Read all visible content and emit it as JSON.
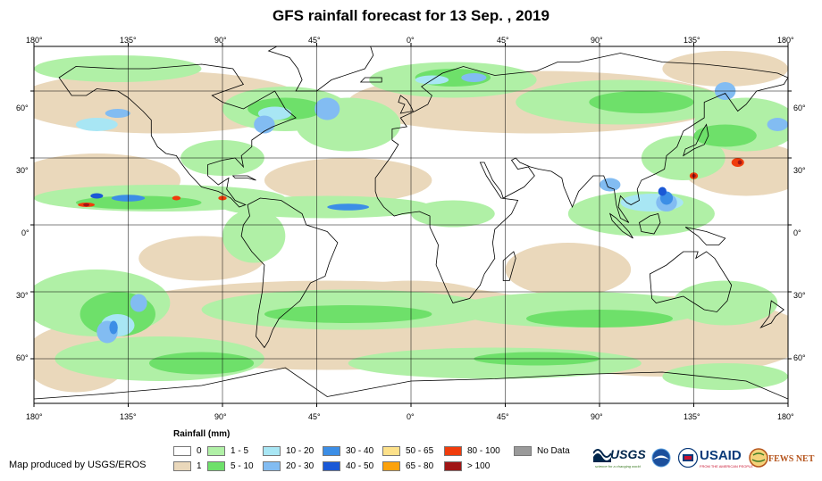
{
  "title": "GFS rainfall forecast for 13 Sep. , 2019",
  "lon_ticks": [
    "180°",
    "135°",
    "90°",
    "45°",
    "0°",
    "45°",
    "90°",
    "135°",
    "180°"
  ],
  "lat_ticks": [
    "60°",
    "30°",
    "0°",
    "30°",
    "60°"
  ],
  "legend": {
    "title": "Rainfall (mm)",
    "items": [
      {
        "label": "0",
        "color": "#ffffff"
      },
      {
        "label": "1",
        "color": "#ead8bb"
      },
      {
        "label": "1 - 5",
        "color": "#b0f0a6"
      },
      {
        "label": "5 - 10",
        "color": "#6ee06a"
      },
      {
        "label": "10 - 20",
        "color": "#a8e6f4"
      },
      {
        "label": "20 - 30",
        "color": "#82bcf2"
      },
      {
        "label": "30 - 40",
        "color": "#3c8ee6"
      },
      {
        "label": "40 - 50",
        "color": "#1a58d6"
      },
      {
        "label": "50 - 65",
        "color": "#fde18a"
      },
      {
        "label": "65 - 80",
        "color": "#fca20c"
      },
      {
        "label": "80 - 100",
        "color": "#f03c0c"
      },
      {
        "label": "> 100",
        "color": "#a01616"
      },
      {
        "label": "No Data",
        "color": "#9a9a9a"
      }
    ]
  },
  "credit": "Map produced by USGS/EROS",
  "logos": {
    "usgs": "USGS",
    "usgs_tagline": "science for a changing world",
    "usaid": "USAID",
    "usaid_tagline": "FROM THE AMERICAN PEOPLE",
    "fewsnet": "FEWS NET"
  }
}
